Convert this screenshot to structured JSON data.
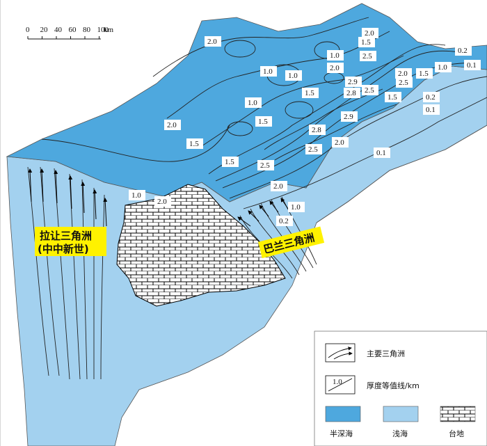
{
  "scale_bar": {
    "ticks": [
      "0",
      "20",
      "40",
      "60",
      "80",
      "100"
    ],
    "unit": "km"
  },
  "deltas": {
    "lara": {
      "name": "拉让三角洲",
      "age": "(中中新世)"
    },
    "baram": {
      "name": "巴兰三角洲"
    }
  },
  "contour_labels": [
    "2.0",
    "1.5",
    "2.5",
    "1.0",
    "1.0",
    "1.0",
    "2.0",
    "0.2",
    "0.1",
    "2.9",
    "2.8",
    "1.5",
    "2.5",
    "1.0",
    "2.0",
    "1.5",
    "2.5",
    "1.5",
    "1.5",
    "0.2",
    "0.1",
    "1.0",
    "2.0",
    "1.5",
    "2.9",
    "2.8",
    "2.0",
    "2.5",
    "0.1",
    "1.5",
    "2.5",
    "1.0",
    "2.0",
    "2.0",
    "1.0",
    "0.2",
    "2.0"
  ],
  "legend": {
    "delta": "主要三角洲",
    "isopach_sample": "1.0",
    "isopach": "厚度等值线/km",
    "semi_deep": "半深海",
    "shallow": "浅海",
    "platform": "台地"
  },
  "colors": {
    "semi_deep_sea": "#4EA8DE",
    "shallow_sea": "#A3D1EF",
    "delta_highlight": "#FFF200",
    "platform_fill": "#ffffff"
  }
}
